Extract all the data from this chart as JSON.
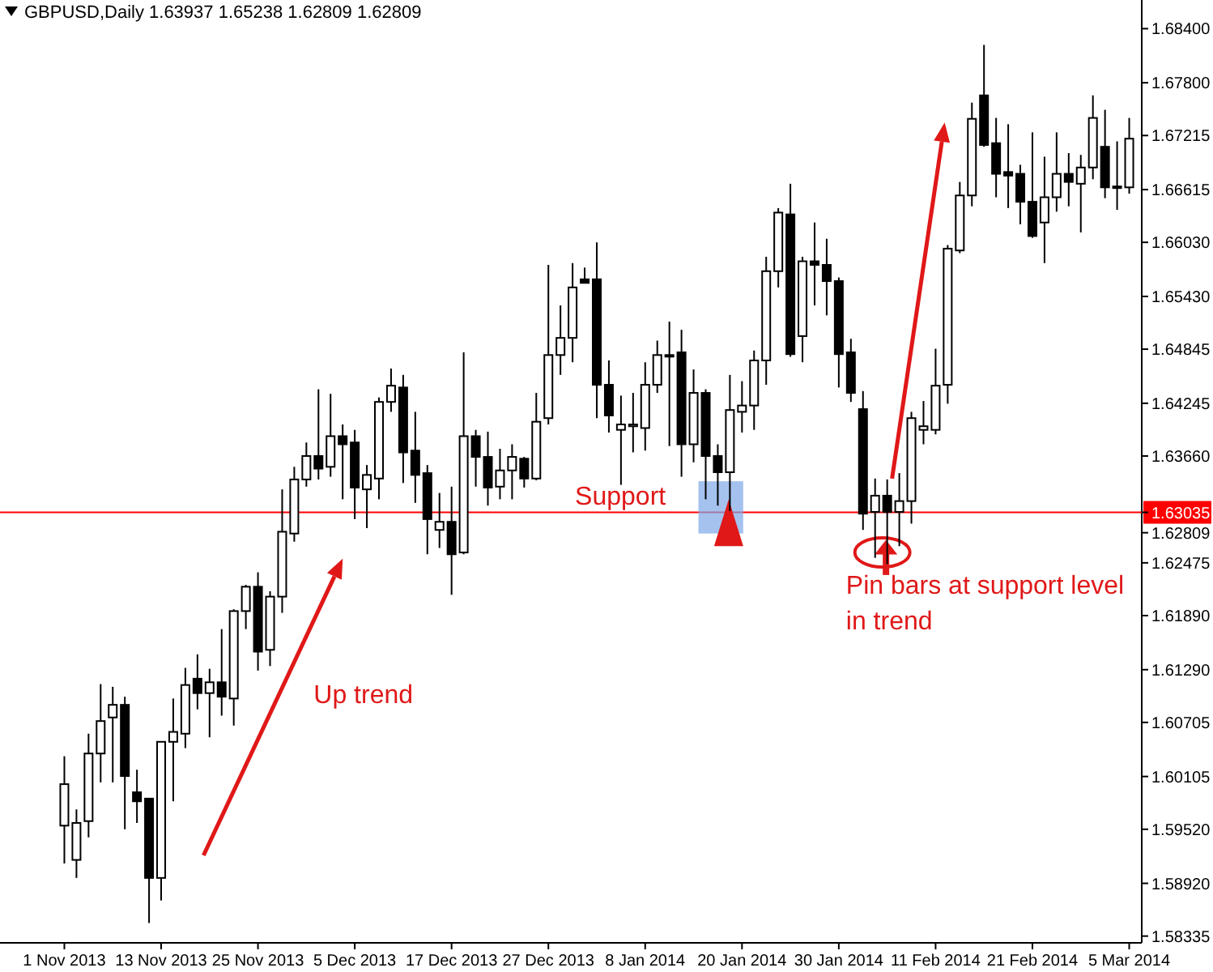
{
  "chart_data": {
    "type": "candlestick",
    "title": "GBPUSD,Daily  1.63937 1.65238 1.62809 1.62809",
    "categories": [
      "1 Nov 2013",
      null,
      null,
      null,
      null,
      null,
      null,
      null,
      "13 Nov 2013",
      null,
      null,
      null,
      null,
      null,
      null,
      null,
      "25 Nov 2013",
      null,
      null,
      null,
      null,
      null,
      null,
      null,
      "5 Dec 2013",
      null,
      null,
      null,
      null,
      null,
      null,
      null,
      "17 Dec 2013",
      null,
      null,
      null,
      null,
      null,
      null,
      null,
      "27 Dec 2013",
      null,
      null,
      null,
      null,
      null,
      null,
      null,
      "8 Jan 2014",
      null,
      null,
      null,
      null,
      null,
      null,
      null,
      "20 Jan 2014",
      null,
      null,
      null,
      null,
      null,
      null,
      null,
      "30 Jan 2014",
      null,
      null,
      null,
      null,
      null,
      null,
      null,
      "11 Feb 2014",
      null,
      null,
      null,
      null,
      null,
      null,
      null,
      "21 Feb 2014",
      null,
      null,
      null,
      null,
      null,
      null,
      null,
      "5 Mar 2014"
    ],
    "ohlc": [
      [
        1.5956,
        1.6033,
        1.5914,
        1.6002
      ],
      [
        1.5918,
        1.5974,
        1.5898,
        1.5959
      ],
      [
        1.5961,
        1.6058,
        1.5943,
        1.6036
      ],
      [
        1.6036,
        1.6113,
        1.6004,
        1.6072
      ],
      [
        1.6076,
        1.611,
        1.6004,
        1.609
      ],
      [
        1.609,
        1.6099,
        1.5952,
        1.6011
      ],
      [
        1.5993,
        1.6018,
        1.5959,
        1.5983
      ],
      [
        1.5986,
        1.5986,
        1.5848,
        1.5898
      ],
      [
        1.5898,
        1.6049,
        1.5873,
        1.6049
      ],
      [
        1.6049,
        1.6097,
        1.5983,
        1.606
      ],
      [
        1.6058,
        1.6131,
        1.6042,
        1.6112
      ],
      [
        1.6119,
        1.6146,
        1.6085,
        1.6103
      ],
      [
        1.6103,
        1.613,
        1.6054,
        1.6115
      ],
      [
        1.6115,
        1.6174,
        1.6078,
        1.6099
      ],
      [
        1.6097,
        1.6196,
        1.6067,
        1.6194
      ],
      [
        1.6194,
        1.6223,
        1.6174,
        1.6221
      ],
      [
        1.6221,
        1.6237,
        1.6128,
        1.6149
      ],
      [
        1.6151,
        1.6216,
        1.6133,
        1.621
      ],
      [
        1.621,
        1.6329,
        1.6192,
        1.6282
      ],
      [
        1.628,
        1.6354,
        1.6271,
        1.634
      ],
      [
        1.634,
        1.6381,
        1.6332,
        1.6366
      ],
      [
        1.6366,
        1.644,
        1.634,
        1.6352
      ],
      [
        1.6354,
        1.6435,
        1.6343,
        1.6388
      ],
      [
        1.6388,
        1.6401,
        1.6318,
        1.6379
      ],
      [
        1.6381,
        1.6395,
        1.6296,
        1.6331
      ],
      [
        1.6329,
        1.6356,
        1.6286,
        1.6345
      ],
      [
        1.6341,
        1.6431,
        1.6318,
        1.6426
      ],
      [
        1.6426,
        1.6463,
        1.6415,
        1.6444
      ],
      [
        1.6442,
        1.6456,
        1.6336,
        1.637
      ],
      [
        1.6372,
        1.6415,
        1.6314,
        1.6345
      ],
      [
        1.6347,
        1.6356,
        1.6257,
        1.6296
      ],
      [
        1.6284,
        1.6325,
        1.6264,
        1.6293
      ],
      [
        1.6293,
        1.6332,
        1.6212,
        1.6257
      ],
      [
        1.6259,
        1.6481,
        1.6257,
        1.6388
      ],
      [
        1.6388,
        1.6395,
        1.6332,
        1.6365
      ],
      [
        1.6365,
        1.6393,
        1.6311,
        1.6331
      ],
      [
        1.6332,
        1.6374,
        1.6318,
        1.635
      ],
      [
        1.635,
        1.6379,
        1.6318,
        1.6365
      ],
      [
        1.6363,
        1.6365,
        1.6331,
        1.6341
      ],
      [
        1.6341,
        1.6436,
        1.6339,
        1.6404
      ],
      [
        1.6408,
        1.6578,
        1.6401,
        1.6478
      ],
      [
        1.6478,
        1.6533,
        1.6456,
        1.6497
      ],
      [
        1.6497,
        1.658,
        1.647,
        1.6553
      ],
      [
        1.6562,
        1.6575,
        1.6558,
        1.6558
      ],
      [
        1.6562,
        1.6603,
        1.6408,
        1.6445
      ],
      [
        1.6445,
        1.6472,
        1.6392,
        1.6411
      ],
      [
        1.6395,
        1.6433,
        1.6334,
        1.6401
      ],
      [
        1.6399,
        1.6436,
        1.637,
        1.6401
      ],
      [
        1.6397,
        1.647,
        1.6372,
        1.6445
      ],
      [
        1.6445,
        1.6494,
        1.6436,
        1.6478
      ],
      [
        1.6477,
        1.6515,
        1.6377,
        1.6478
      ],
      [
        1.6481,
        1.6506,
        1.6343,
        1.6379
      ],
      [
        1.6379,
        1.6462,
        1.6359,
        1.6436
      ],
      [
        1.6436,
        1.644,
        1.6318,
        1.6366
      ],
      [
        1.6366,
        1.6379,
        1.6311,
        1.6348
      ],
      [
        1.6348,
        1.6456,
        1.6305,
        1.6417
      ],
      [
        1.6415,
        1.6449,
        1.6392,
        1.6422
      ],
      [
        1.6422,
        1.6483,
        1.6395,
        1.6472
      ],
      [
        1.6472,
        1.6587,
        1.6445,
        1.6571
      ],
      [
        1.6571,
        1.6641,
        1.6553,
        1.6636
      ],
      [
        1.6634,
        1.6668,
        1.6476,
        1.6479
      ],
      [
        1.6499,
        1.6587,
        1.647,
        1.6582
      ],
      [
        1.6582,
        1.6625,
        1.6533,
        1.6578
      ],
      [
        1.6578,
        1.6607,
        1.6522,
        1.656
      ],
      [
        1.656,
        1.6564,
        1.6442,
        1.6479
      ],
      [
        1.6481,
        1.6496,
        1.6426,
        1.6436
      ],
      [
        1.6418,
        1.6438,
        1.6284,
        1.6302
      ],
      [
        1.6304,
        1.6341,
        1.6253,
        1.6322
      ],
      [
        1.6322,
        1.634,
        1.6246,
        1.6304
      ],
      [
        1.6304,
        1.6347,
        1.6266,
        1.6316
      ],
      [
        1.6316,
        1.6415,
        1.6291,
        1.6408
      ],
      [
        1.6395,
        1.6427,
        1.6379,
        1.6399
      ],
      [
        1.6395,
        1.6485,
        1.639,
        1.6444
      ],
      [
        1.6445,
        1.66,
        1.6424,
        1.6596
      ],
      [
        1.6594,
        1.667,
        1.6591,
        1.6655
      ],
      [
        1.6655,
        1.6758,
        1.6643,
        1.674
      ],
      [
        1.6766,
        1.6822,
        1.6709,
        1.6711
      ],
      [
        1.6713,
        1.6741,
        1.6653,
        1.6679
      ],
      [
        1.6681,
        1.6734,
        1.6641,
        1.6677
      ],
      [
        1.6679,
        1.6689,
        1.6623,
        1.6648
      ],
      [
        1.6648,
        1.6725,
        1.6608,
        1.661
      ],
      [
        1.6625,
        1.6698,
        1.658,
        1.6653
      ],
      [
        1.6653,
        1.6725,
        1.6637,
        1.6679
      ],
      [
        1.6679,
        1.6702,
        1.6643,
        1.667
      ],
      [
        1.6668,
        1.67,
        1.6614,
        1.6686
      ],
      [
        1.6686,
        1.6766,
        1.6673,
        1.6741
      ],
      [
        1.6709,
        1.675,
        1.6652,
        1.6664
      ],
      [
        1.6665,
        1.6715,
        1.6639,
        1.6664
      ],
      [
        1.6664,
        1.6741,
        1.6657,
        1.6718
      ]
    ],
    "color": "#000000",
    "ylim": [
      1.5826,
      1.687
    ],
    "yticks": [
      {
        "value": 1.684,
        "label": "1.68400"
      },
      {
        "value": 1.678,
        "label": "1.67800"
      },
      {
        "value": 1.67215,
        "label": "1.67215"
      },
      {
        "value": 1.66615,
        "label": "1.66615"
      },
      {
        "value": 1.6603,
        "label": "1.66030"
      },
      {
        "value": 1.6543,
        "label": "1.65430"
      },
      {
        "value": 1.64845,
        "label": "1.64845"
      },
      {
        "value": 1.64245,
        "label": "1.64245"
      },
      {
        "value": 1.6366,
        "label": "1.63660"
      },
      {
        "value": 1.63035,
        "label": "1.63035"
      },
      {
        "value": 1.62809,
        "label": "1.62809"
      },
      {
        "value": 1.62475,
        "label": "1.62475"
      },
      {
        "value": 1.6189,
        "label": "1.61890"
      },
      {
        "value": 1.6129,
        "label": "1.61290"
      },
      {
        "value": 1.60705,
        "label": "1.60705"
      },
      {
        "value": 1.60105,
        "label": "1.60105"
      },
      {
        "value": 1.5952,
        "label": "1.59520"
      },
      {
        "value": 1.5892,
        "label": "1.58920"
      },
      {
        "value": 1.58335,
        "label": "1.58335"
      }
    ],
    "ref_lines": [
      {
        "axis": "y",
        "value": 1.63035,
        "label": "Support",
        "color": "#ff0000",
        "line_style": "solid"
      }
    ],
    "annotations": [
      "Up trend",
      "Pin bars at support level in trend"
    ]
  }
}
